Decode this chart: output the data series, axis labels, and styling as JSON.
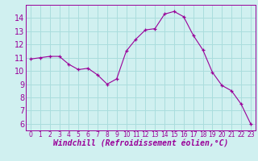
{
  "x": [
    0,
    1,
    2,
    3,
    4,
    5,
    6,
    7,
    8,
    9,
    10,
    11,
    12,
    13,
    14,
    15,
    16,
    17,
    18,
    19,
    20,
    21,
    22,
    23
  ],
  "y": [
    10.9,
    11.0,
    11.1,
    11.1,
    10.5,
    10.1,
    10.2,
    9.7,
    9.0,
    9.4,
    11.5,
    12.4,
    13.1,
    13.2,
    14.3,
    14.5,
    14.1,
    12.7,
    11.6,
    9.9,
    8.9,
    8.5,
    7.5,
    6.0
  ],
  "line_color": "#990099",
  "marker": "+",
  "marker_color": "#990099",
  "bg_color": "#d0f0f0",
  "grid_color": "#aadddd",
  "xlabel": "Windchill (Refroidissement éolien,°C)",
  "ylim": [
    5.5,
    15.0
  ],
  "yticks": [
    6,
    7,
    8,
    9,
    10,
    11,
    12,
    13,
    14
  ],
  "xticks": [
    0,
    1,
    2,
    3,
    4,
    5,
    6,
    7,
    8,
    9,
    10,
    11,
    12,
    13,
    14,
    15,
    16,
    17,
    18,
    19,
    20,
    21,
    22,
    23
  ],
  "xlim": [
    -0.5,
    23.5
  ],
  "xtick_fontsize": 5.5,
  "ytick_fontsize": 7.0,
  "label_fontsize": 7.0
}
